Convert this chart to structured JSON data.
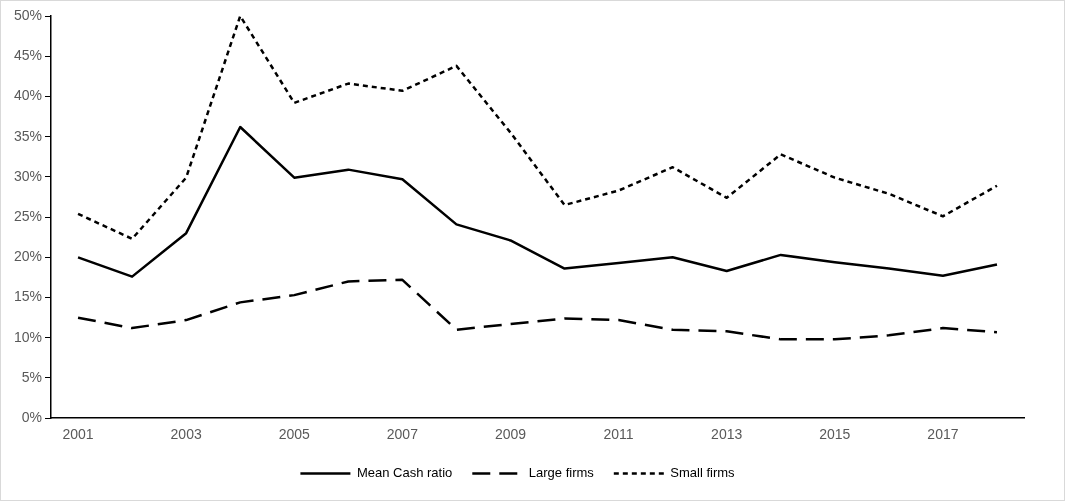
{
  "chart_data": {
    "type": "line",
    "categories": [
      "2001",
      null,
      "2003",
      null,
      "2005",
      null,
      "2007",
      null,
      "2009",
      null,
      "2011",
      null,
      "2013",
      null,
      "2015",
      null,
      "2017",
      null
    ],
    "series": [
      {
        "name": "Mean Cash ratio",
        "color": "#000000",
        "line_style": "solid",
        "values": [
          20.0,
          17.6,
          23.0,
          36.2,
          29.9,
          30.9,
          29.7,
          24.1,
          22.1,
          18.6,
          19.3,
          20.0,
          18.3,
          20.3,
          19.4,
          18.6,
          17.7,
          19.1
        ]
      },
      {
        "name": "Large firms",
        "color": "#000000",
        "line_style": "dashed",
        "values": [
          12.5,
          11.2,
          12.2,
          14.4,
          15.3,
          17.0,
          17.2,
          11.0,
          11.7,
          12.4,
          12.2,
          11.0,
          10.8,
          9.8,
          9.8,
          10.3,
          11.2,
          10.7
        ]
      },
      {
        "name": "Small firms",
        "color": "#000000",
        "line_style": "dotted",
        "values": [
          25.4,
          22.3,
          29.9,
          50.0,
          39.2,
          41.6,
          40.7,
          43.8,
          35.5,
          26.5,
          28.3,
          31.2,
          27.4,
          32.8,
          29.9,
          27.9,
          25.1,
          28.9
        ]
      }
    ],
    "ylim": [
      0,
      50
    ],
    "yticks": [
      {
        "value": 0,
        "label": "0%"
      },
      {
        "value": 5,
        "label": "5%"
      },
      {
        "value": 10,
        "label": "10%"
      },
      {
        "value": 15,
        "label": "15%"
      },
      {
        "value": 20,
        "label": "20%"
      },
      {
        "value": 25,
        "label": "25%"
      },
      {
        "value": 30,
        "label": "30%"
      },
      {
        "value": 35,
        "label": "35%"
      },
      {
        "value": 40,
        "label": "40%"
      },
      {
        "value": 45,
        "label": "45%"
      },
      {
        "value": 50,
        "label": "50%"
      }
    ],
    "grid": false,
    "legend": "bottom",
    "marker": "none"
  }
}
